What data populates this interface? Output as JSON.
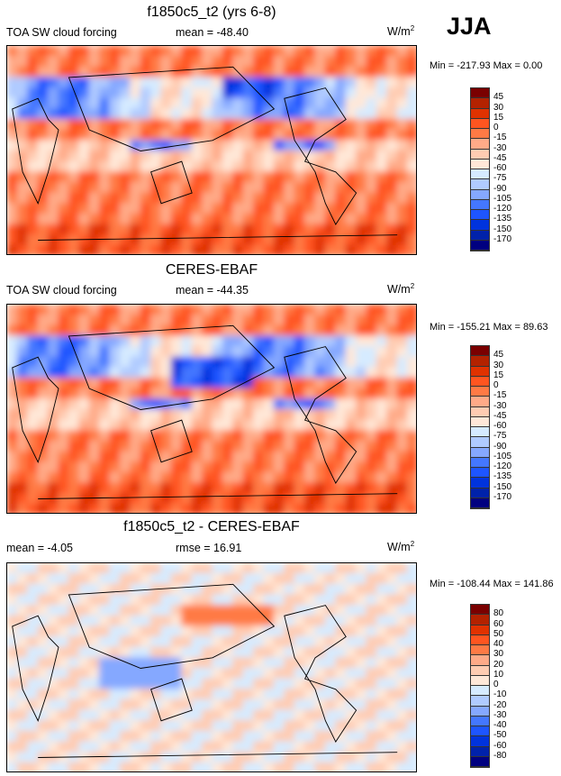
{
  "jja_label": "JJA",
  "chart_data": [
    {
      "type": "heatmap",
      "title": "f1850c5_t2 (yrs 6-8)",
      "left_label": "TOA SW cloud forcing",
      "center_label": "mean = -48.40",
      "units": "W/m",
      "units_sup": "2",
      "minmax": "Min = -217.93 Max =   0.00",
      "levels": [
        "45",
        "30",
        "15",
        "0",
        "-15",
        "-30",
        "-45",
        "-60",
        "-75",
        "-90",
        "-105",
        "-120",
        "-135",
        "-150",
        "-170"
      ],
      "mean": -48.4
    },
    {
      "type": "heatmap",
      "title": "CERES-EBAF",
      "left_label": "TOA SW cloud forcing",
      "center_label": "mean = -44.35",
      "units": "W/m",
      "units_sup": "2",
      "minmax": "Min = -155.21 Max =  89.63",
      "levels": [
        "45",
        "30",
        "15",
        "0",
        "-15",
        "-30",
        "-45",
        "-60",
        "-75",
        "-90",
        "-105",
        "-120",
        "-135",
        "-150",
        "-170"
      ],
      "mean": -44.35
    },
    {
      "type": "heatmap",
      "title": "f1850c5_t2 - CERES-EBAF",
      "left_label": "mean =  -4.05",
      "center_label": "rmse =  16.91",
      "units": "W/m",
      "units_sup": "2",
      "minmax": "Min = -108.44 Max = 141.86",
      "levels": [
        "80",
        "60",
        "50",
        "40",
        "30",
        "20",
        "10",
        "0",
        "-10",
        "-20",
        "-30",
        "-40",
        "-50",
        "-60",
        "-80"
      ],
      "mean": -4.05,
      "rmse": 16.91
    }
  ],
  "colors": [
    "#7a0000",
    "#b32200",
    "#e03200",
    "#ff5520",
    "#ff7a45",
    "#ffaa88",
    "#ffccb2",
    "#ffe8d8",
    "#d6ebff",
    "#b0cbff",
    "#85a8ff",
    "#4477ff",
    "#1e55ff",
    "#0033dd",
    "#0022aa",
    "#000080"
  ]
}
